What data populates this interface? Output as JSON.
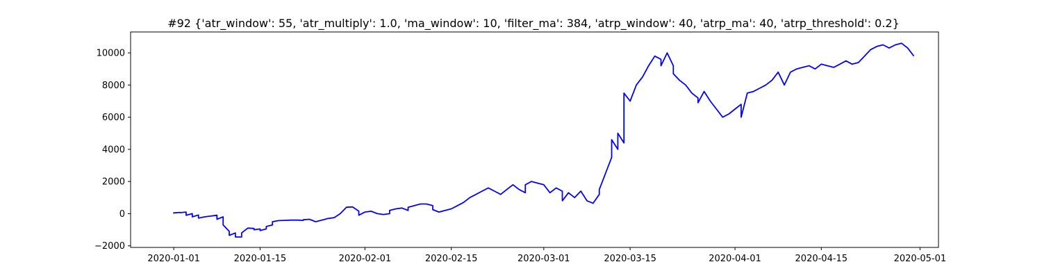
{
  "chart_data": {
    "type": "line",
    "title": "#92 {'atr_window': 55, 'atr_multiply': 1.0, 'ma_window': 10, 'filter_ma': 384, 'atrp_window': 40, 'atrp_ma': 40, 'atrp_threshold': 0.2}",
    "xlabel": "",
    "ylabel": "",
    "x_axis": "date",
    "xlim": [
      "2019-12-25",
      "2020-05-04"
    ],
    "ylim": [
      -2100,
      11300
    ],
    "grid": false,
    "legend": "none",
    "line_color": "#0000ff",
    "x_ticks": [
      {
        "value": "2020-01-01",
        "label": "2020-01-01"
      },
      {
        "value": "2020-01-15",
        "label": "2020-01-15"
      },
      {
        "value": "2020-02-01",
        "label": "2020-02-01"
      },
      {
        "value": "2020-02-15",
        "label": "2020-02-15"
      },
      {
        "value": "2020-03-01",
        "label": "2020-03-01"
      },
      {
        "value": "2020-03-15",
        "label": "2020-03-15"
      },
      {
        "value": "2020-04-01",
        "label": "2020-04-01"
      },
      {
        "value": "2020-04-15",
        "label": "2020-04-15"
      },
      {
        "value": "2020-05-01",
        "label": "2020-05-01"
      }
    ],
    "y_ticks": [
      {
        "value": -2000,
        "label": "−2000"
      },
      {
        "value": 0,
        "label": "0"
      },
      {
        "value": 2000,
        "label": "2000"
      },
      {
        "value": 4000,
        "label": "4000"
      },
      {
        "value": 6000,
        "label": "6000"
      },
      {
        "value": 8000,
        "label": "8000"
      },
      {
        "value": 10000,
        "label": "10000"
      }
    ],
    "series": [
      {
        "points": [
          [
            "2020-01-01",
            0
          ],
          [
            "2020-01-01",
            50
          ],
          [
            "2020-01-02",
            80
          ],
          [
            "2020-01-02",
            60
          ],
          [
            "2020-01-03",
            100
          ],
          [
            "2020-01-03",
            40
          ],
          [
            "2020-01-03",
            -100
          ],
          [
            "2020-01-04",
            0
          ],
          [
            "2020-01-04",
            -200
          ],
          [
            "2020-01-05",
            -80
          ],
          [
            "2020-01-05",
            -280
          ],
          [
            "2020-01-06",
            -200
          ],
          [
            "2020-01-07",
            -150
          ],
          [
            "2020-01-08",
            -100
          ],
          [
            "2020-01-08",
            -350
          ],
          [
            "2020-01-09",
            -200
          ],
          [
            "2020-01-09",
            -700
          ],
          [
            "2020-01-10",
            -1100
          ],
          [
            "2020-01-10",
            -1350
          ],
          [
            "2020-01-11",
            -1200
          ],
          [
            "2020-01-11",
            -1450
          ],
          [
            "2020-01-12",
            -1450
          ],
          [
            "2020-01-12",
            -1200
          ],
          [
            "2020-01-13",
            -900
          ],
          [
            "2020-01-14",
            -920
          ],
          [
            "2020-01-14",
            -1000
          ],
          [
            "2020-01-15",
            -950
          ],
          [
            "2020-01-15",
            -1050
          ],
          [
            "2020-01-16",
            -950
          ],
          [
            "2020-01-16",
            -800
          ],
          [
            "2020-01-17",
            -700
          ],
          [
            "2020-01-17",
            -500
          ],
          [
            "2020-01-18",
            -430
          ],
          [
            "2020-01-19",
            -420
          ],
          [
            "2020-01-20",
            -400
          ],
          [
            "2020-01-21",
            -400
          ],
          [
            "2020-01-22",
            -420
          ],
          [
            "2020-01-22",
            -380
          ],
          [
            "2020-01-23",
            -350
          ],
          [
            "2020-01-24",
            -500
          ],
          [
            "2020-01-25",
            -400
          ],
          [
            "2020-01-26",
            -300
          ],
          [
            "2020-01-27",
            -250
          ],
          [
            "2020-01-28",
            0
          ],
          [
            "2020-01-29",
            400
          ],
          [
            "2020-01-30",
            420
          ],
          [
            "2020-01-31",
            150
          ],
          [
            "2020-01-31",
            -100
          ],
          [
            "2020-02-01",
            100
          ],
          [
            "2020-02-02",
            150
          ],
          [
            "2020-02-03",
            0
          ],
          [
            "2020-02-04",
            -50
          ],
          [
            "2020-02-05",
            0
          ],
          [
            "2020-02-05",
            200
          ],
          [
            "2020-02-06",
            300
          ],
          [
            "2020-02-07",
            350
          ],
          [
            "2020-02-08",
            200
          ],
          [
            "2020-02-08",
            400
          ],
          [
            "2020-02-09",
            500
          ],
          [
            "2020-02-10",
            600
          ],
          [
            "2020-02-11",
            600
          ],
          [
            "2020-02-12",
            500
          ],
          [
            "2020-02-12",
            250
          ],
          [
            "2020-02-13",
            100
          ],
          [
            "2020-02-14",
            200
          ],
          [
            "2020-02-15",
            300
          ],
          [
            "2020-02-16",
            500
          ],
          [
            "2020-02-17",
            700
          ],
          [
            "2020-02-18",
            1000
          ],
          [
            "2020-02-19",
            1200
          ],
          [
            "2020-02-20",
            1400
          ],
          [
            "2020-02-21",
            1600
          ],
          [
            "2020-02-22",
            1400
          ],
          [
            "2020-02-23",
            1200
          ],
          [
            "2020-02-24",
            1500
          ],
          [
            "2020-02-25",
            1800
          ],
          [
            "2020-02-26",
            1500
          ],
          [
            "2020-02-27",
            1300
          ],
          [
            "2020-02-27",
            1800
          ],
          [
            "2020-02-28",
            2000
          ],
          [
            "2020-02-29",
            1900
          ],
          [
            "2020-03-01",
            1800
          ],
          [
            "2020-03-02",
            1300
          ],
          [
            "2020-03-03",
            1600
          ],
          [
            "2020-03-04",
            1400
          ],
          [
            "2020-03-04",
            800
          ],
          [
            "2020-03-05",
            1300
          ],
          [
            "2020-03-06",
            1000
          ],
          [
            "2020-03-07",
            1400
          ],
          [
            "2020-03-08",
            800
          ],
          [
            "2020-03-09",
            650
          ],
          [
            "2020-03-10",
            1200
          ],
          [
            "2020-03-10",
            1500
          ],
          [
            "2020-03-11",
            2500
          ],
          [
            "2020-03-12",
            3500
          ],
          [
            "2020-03-12",
            4600
          ],
          [
            "2020-03-13",
            4000
          ],
          [
            "2020-03-13",
            5000
          ],
          [
            "2020-03-14",
            4400
          ],
          [
            "2020-03-14",
            7500
          ],
          [
            "2020-03-15",
            7000
          ],
          [
            "2020-03-16",
            8000
          ],
          [
            "2020-03-17",
            8500
          ],
          [
            "2020-03-18",
            9200
          ],
          [
            "2020-03-19",
            9800
          ],
          [
            "2020-03-20",
            9600
          ],
          [
            "2020-03-20",
            9200
          ],
          [
            "2020-03-21",
            10000
          ],
          [
            "2020-03-22",
            9200
          ],
          [
            "2020-03-22",
            8700
          ],
          [
            "2020-03-23",
            8300
          ],
          [
            "2020-03-24",
            8000
          ],
          [
            "2020-03-25",
            7500
          ],
          [
            "2020-03-26",
            7200
          ],
          [
            "2020-03-26",
            6900
          ],
          [
            "2020-03-27",
            7600
          ],
          [
            "2020-03-28",
            7000
          ],
          [
            "2020-03-29",
            6500
          ],
          [
            "2020-03-30",
            6000
          ],
          [
            "2020-03-31",
            6200
          ],
          [
            "2020-04-01",
            6500
          ],
          [
            "2020-04-02",
            6800
          ],
          [
            "2020-04-02",
            6000
          ],
          [
            "2020-04-03",
            7500
          ],
          [
            "2020-04-04",
            7600
          ],
          [
            "2020-04-05",
            7800
          ],
          [
            "2020-04-06",
            8000
          ],
          [
            "2020-04-07",
            8300
          ],
          [
            "2020-04-08",
            8800
          ],
          [
            "2020-04-09",
            8000
          ],
          [
            "2020-04-10",
            8800
          ],
          [
            "2020-04-11",
            9000
          ],
          [
            "2020-04-12",
            9100
          ],
          [
            "2020-04-13",
            9200
          ],
          [
            "2020-04-14",
            9000
          ],
          [
            "2020-04-15",
            9300
          ],
          [
            "2020-04-16",
            9200
          ],
          [
            "2020-04-17",
            9100
          ],
          [
            "2020-04-18",
            9300
          ],
          [
            "2020-04-19",
            9500
          ],
          [
            "2020-04-20",
            9300
          ],
          [
            "2020-04-21",
            9400
          ],
          [
            "2020-04-22",
            9800
          ],
          [
            "2020-04-23",
            10200
          ],
          [
            "2020-04-24",
            10400
          ],
          [
            "2020-04-25",
            10500
          ],
          [
            "2020-04-26",
            10300
          ],
          [
            "2020-04-27",
            10500
          ],
          [
            "2020-04-28",
            10600
          ],
          [
            "2020-04-29",
            10300
          ],
          [
            "2020-04-30",
            9800
          ]
        ]
      }
    ]
  }
}
